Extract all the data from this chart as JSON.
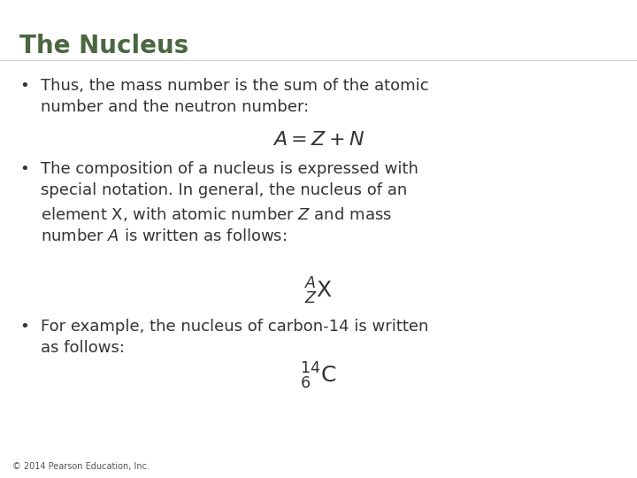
{
  "title": "The Nucleus",
  "title_color": "#4a6741",
  "title_fontsize": 20,
  "background_color": "#ffffff",
  "text_color": "#333333",
  "body_fontsize": 13,
  "footer": "© 2014 Pearson Education, Inc.",
  "footer_fontsize": 7,
  "formula1": "$\\mathit{A} = \\mathit{Z} + \\mathit{N}$",
  "formula1_fontsize": 16,
  "formula2_fontsize": 18,
  "formula3_fontsize": 18,
  "bullet1_line1": "Thus, the mass number is the sum of the atomic",
  "bullet1_line2": "number and the neutron number:",
  "bullet2_line1": "The composition of a nucleus is expressed with",
  "bullet2_line2": "special notation. In general, the nucleus of an",
  "bullet2_line3": "element X, with atomic number ",
  "bullet2_line3b": " and mass",
  "bullet2_line4": "number ",
  "bullet2_line4b": " is written as follows:",
  "bullet3_line1": "For example, the nucleus of carbon-14 is written",
  "bullet3_line2": "as follows:"
}
